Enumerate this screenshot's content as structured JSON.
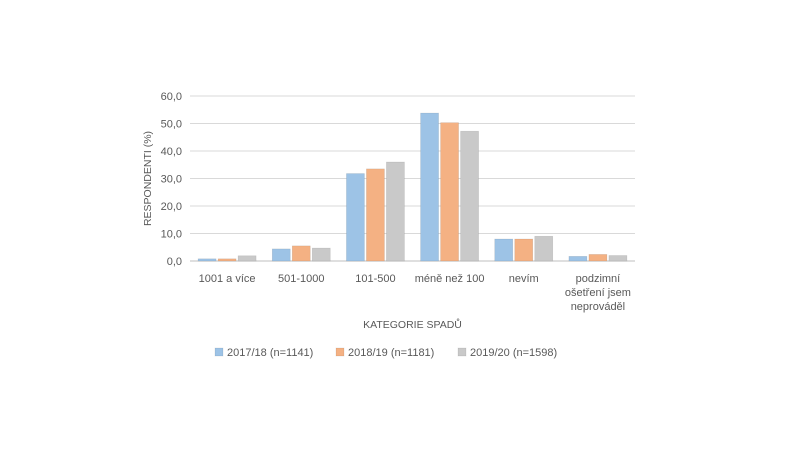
{
  "chart_data": {
    "type": "bar",
    "title": "",
    "xlabel": "KATEGORIE SPADŮ",
    "ylabel": "RESPONDENTI (%)",
    "ylim": [
      0,
      60
    ],
    "yticks": [
      "0,0",
      "10,0",
      "20,0",
      "30,0",
      "40,0",
      "50,0",
      "60,0"
    ],
    "grid": true,
    "legend_position": "bottom",
    "categories": [
      [
        "1001 a více"
      ],
      [
        "501-1000"
      ],
      [
        "101-500"
      ],
      [
        "méně než 100"
      ],
      [
        "nevím"
      ],
      [
        "podzimní",
        "ošetření jsem",
        "neprováděl"
      ]
    ],
    "series": [
      {
        "name": "2017/18 (n=1141)",
        "color": "#9dc3e6",
        "values": [
          0.8,
          4.4,
          31.8,
          53.8,
          8.0,
          1.7
        ]
      },
      {
        "name": "2018/19 (n=1181)",
        "color": "#f4b183",
        "values": [
          0.8,
          5.5,
          33.5,
          50.3,
          8.0,
          2.4
        ]
      },
      {
        "name": "2019/20 (n=1598)",
        "color": "#c9c9c9",
        "values": [
          1.9,
          4.7,
          36.0,
          47.2,
          9.0,
          2.0
        ]
      }
    ]
  }
}
